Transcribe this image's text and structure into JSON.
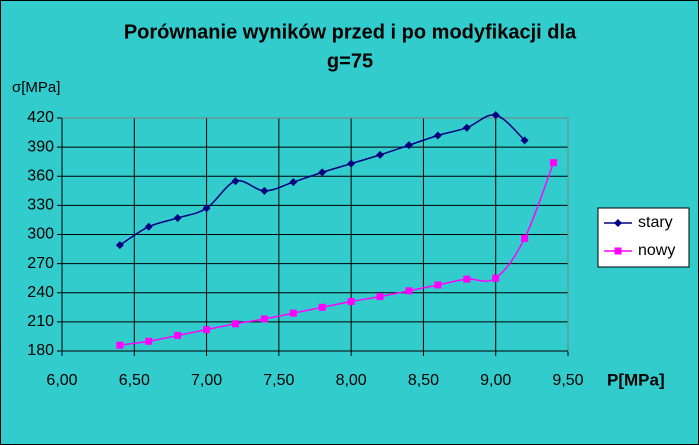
{
  "chart_data": {
    "type": "line",
    "title": "Porównanie wyników przed i po modyfikacji dla",
    "subtitle": "g=75",
    "y_label": "σ[MPa]",
    "x_label": "P[MPa]",
    "series": [
      {
        "name": "stary",
        "color": "#000080",
        "marker": "diamond",
        "x": [
          6.4,
          6.6,
          6.8,
          7.0,
          7.2,
          7.4,
          7.6,
          7.8,
          8.0,
          8.2,
          8.4,
          8.6,
          8.8,
          9.0,
          9.2
        ],
        "values": [
          289,
          308,
          317,
          327,
          355,
          345,
          354,
          364,
          373,
          382,
          392,
          402,
          410,
          423,
          397
        ]
      },
      {
        "name": "nowy",
        "color": "#FF00FF",
        "marker": "square",
        "x": [
          6.4,
          6.6,
          6.8,
          7.0,
          7.2,
          7.4,
          7.6,
          7.8,
          8.0,
          8.2,
          8.4,
          8.6,
          8.8,
          9.0,
          9.2,
          9.4
        ],
        "values": [
          186,
          190,
          196,
          202,
          208,
          213,
          219,
          225,
          231,
          236,
          242,
          248,
          254,
          255,
          296,
          374
        ]
      }
    ],
    "xlim": [
      6,
      9.5
    ],
    "xticks": [
      {
        "value": 6,
        "label": "6,00"
      },
      {
        "value": 6.5,
        "label": "6,50"
      },
      {
        "value": 7,
        "label": "7,00"
      },
      {
        "value": 7.5,
        "label": "7,50"
      },
      {
        "value": 8,
        "label": "8,00"
      },
      {
        "value": 8.5,
        "label": "8,50"
      },
      {
        "value": 9,
        "label": "9,00"
      },
      {
        "value": 9.5,
        "label": "9,50"
      }
    ],
    "ylim": [
      180,
      420
    ],
    "yticks": [
      180,
      210,
      240,
      270,
      300,
      330,
      360,
      390,
      420
    ],
    "grid": true,
    "smooth": true,
    "legend": "right"
  }
}
